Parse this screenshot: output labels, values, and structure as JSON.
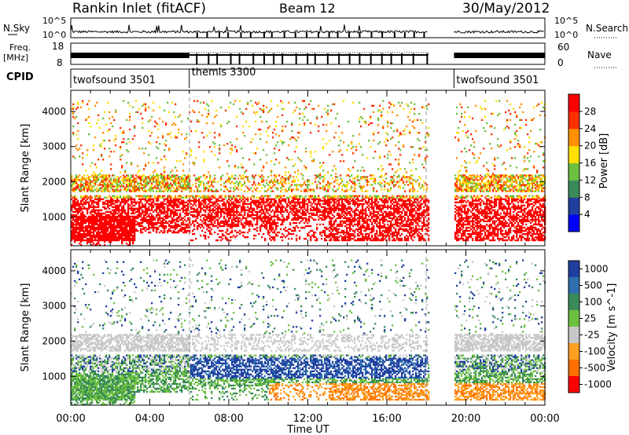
{
  "header": {
    "station": "Rankin Inlet (fitACF)",
    "beam": "Beam 12",
    "date": "30/May/2012"
  },
  "meta_panels": {
    "nsky_label": "N.Sky",
    "nsearch_label": "N.Search",
    "nsky_ticks": [
      "10^5",
      "10^0"
    ],
    "nsearch_ticks": [
      "10^5",
      "10^0"
    ],
    "freq_label": "Freq.",
    "freq_unit": "[MHz]",
    "freq_ticks": [
      "18",
      "8"
    ],
    "nave_label": "Nave",
    "nave_ticks": [
      "60",
      "0"
    ],
    "cpid_label": "CPID"
  },
  "cpid_segments": [
    {
      "label": "twofsound 3501",
      "start_hr": 0,
      "end_hr": 6
    },
    {
      "label": "themis 3300",
      "start_hr": 6,
      "end_hr": 19.4
    },
    {
      "label": "twofsound 3501",
      "start_hr": 19.4,
      "end_hr": 24
    }
  ],
  "colors": {
    "power": [
      "#0000ff",
      "#1f3fa0",
      "#3a8a5a",
      "#6cc040",
      "#ffe000",
      "#ff9000",
      "#ff3000",
      "#ff0000"
    ],
    "velocity": [
      "#1f3fa0",
      "#2f6fb0",
      "#3a8a5a",
      "#6cc040",
      "#c8c8c8",
      "#ffa020",
      "#ff7000",
      "#ff0000"
    ]
  },
  "chart_data": [
    {
      "type": "heatmap",
      "title": "Power",
      "xlabel": "Time UT",
      "ylabel": "Slant Range [km]",
      "x_ticks": [
        "00:00",
        "04:00",
        "08:00",
        "12:00",
        "16:00",
        "20:00",
        "00:00"
      ],
      "y_ticks": [
        "1000",
        "2000",
        "3000",
        "4000"
      ],
      "xlim_hr": [
        0,
        24
      ],
      "ylim_km": [
        180,
        4600
      ],
      "data_gap_hr": [
        18.1,
        19.4
      ],
      "colorbar": {
        "label": "Power [dB]",
        "ticks": [
          "4",
          "8",
          "12",
          "16",
          "20",
          "24",
          "28"
        ],
        "range": [
          0,
          30
        ]
      }
    },
    {
      "type": "heatmap",
      "title": "Velocity",
      "xlabel": "Time UT",
      "ylabel": "Slant Range [km]",
      "x_ticks": [
        "00:00",
        "04:00",
        "08:00",
        "12:00",
        "16:00",
        "20:00",
        "00:00"
      ],
      "y_ticks": [
        "1000",
        "2000",
        "3000",
        "4000"
      ],
      "xlim_hr": [
        0,
        24
      ],
      "ylim_km": [
        180,
        4600
      ],
      "data_gap_hr": [
        18.1,
        19.4
      ],
      "colorbar": {
        "label": "Velocity [m s^-1]",
        "ticks": [
          "1000",
          "500",
          "100",
          "25",
          "-25",
          "-100",
          "-500",
          "-1000"
        ],
        "range": [
          -1000,
          1000
        ]
      }
    }
  ]
}
